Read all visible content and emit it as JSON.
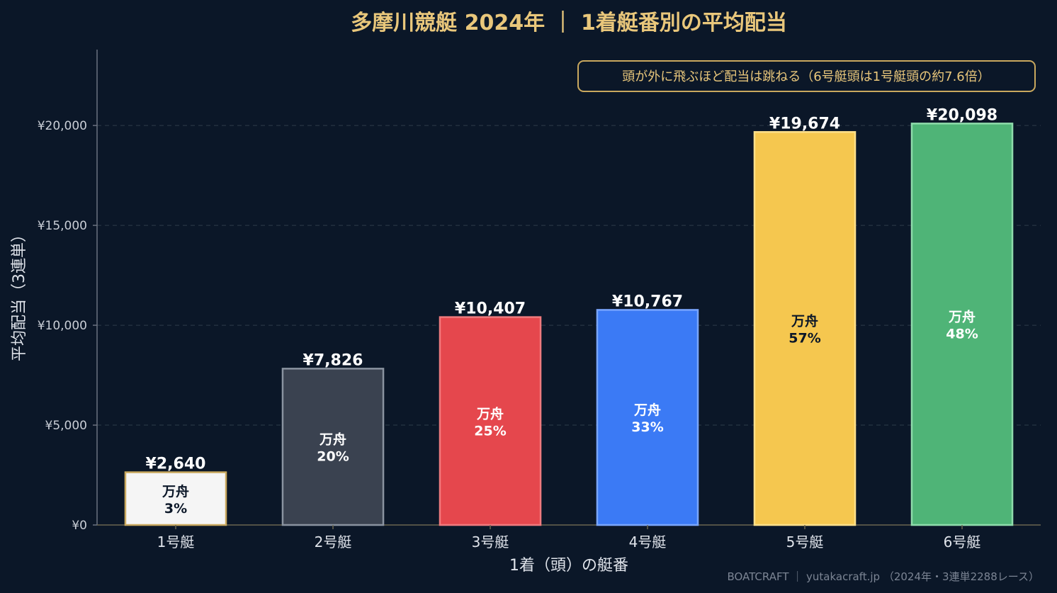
{
  "chart_data": {
    "type": "bar",
    "title": "多摩川競艇 2024年 ｜ 1着艇番別の平均配当",
    "xlabel": "1着（頭）の艇番",
    "ylabel": "平均配当（3連単）",
    "ylim": [
      0,
      23800
    ],
    "yticks": [
      0,
      5000,
      10000,
      15000,
      20000
    ],
    "ytick_labels": [
      "¥0",
      "¥5,000",
      "¥10,000",
      "¥15,000",
      "¥20,000"
    ],
    "grid": true,
    "categories": [
      "1号艇",
      "2号艇",
      "3号艇",
      "4号艇",
      "5号艇",
      "6号艇"
    ],
    "values": [
      2640,
      7826,
      10407,
      10767,
      19674,
      20098
    ],
    "value_labels": [
      "¥2,640",
      "¥7,826",
      "¥10,407",
      "¥10,767",
      "¥19,674",
      "¥20,098"
    ],
    "inner_label_title": "万舟",
    "inner_values": [
      "3%",
      "20%",
      "25%",
      "33%",
      "57%",
      "48%"
    ],
    "bar_colors": [
      "#f5f5f5",
      "#3a4250",
      "#e5474d",
      "#3b7af5",
      "#f5c74f",
      "#4fb477"
    ],
    "bar_edge_colors": [
      "#c9a85e",
      "#8a93a0",
      "#f07a7e",
      "#7aa6ff",
      "#ffe08a",
      "#8fdcab"
    ],
    "inner_text_colors": [
      "#0b1728",
      "#ffffff",
      "#ffffff",
      "#ffffff",
      "#0b1728",
      "#ffffff"
    ],
    "annotation": "頭が外に飛ぶほど配当は跳ねる（6号艇頭は1号艇頭の約7.6倍）",
    "annotation_placement": "top-right"
  },
  "footer": "BOATCRAFT ｜ yutakacraft.jp （2024年・3連単2288レース）"
}
